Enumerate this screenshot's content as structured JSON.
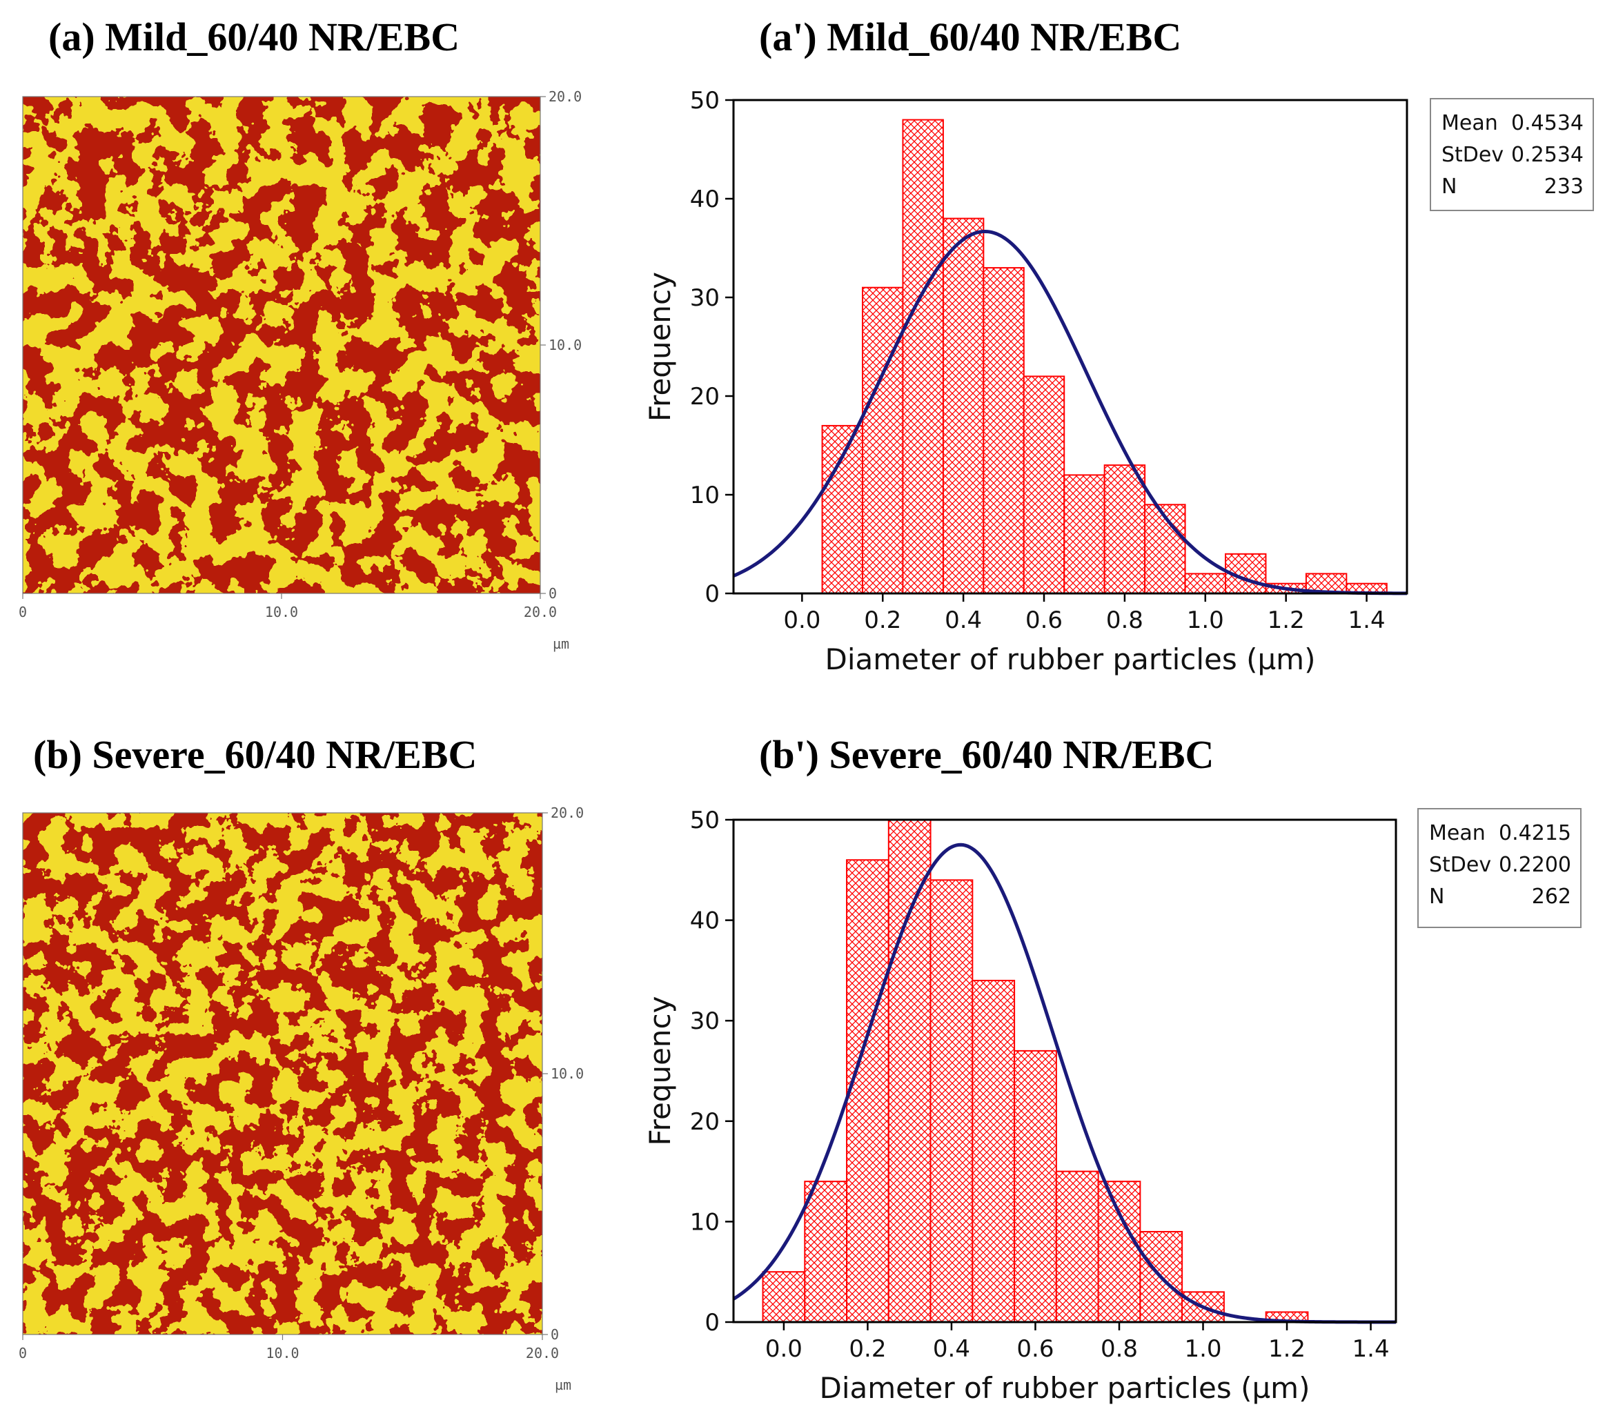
{
  "colors": {
    "matrix": "#f2dc2c",
    "matrix_dark": "#b9a615",
    "rubber": "#b81c0a",
    "bar": "#ff0000",
    "curve": "#1a1a7a"
  },
  "panels": {
    "a": {
      "title": "(a) Mild_60/40 NR/EBC"
    },
    "a_prime": {
      "title": "(a') Mild_60/40 NR/EBC"
    },
    "b": {
      "title": "(b) Severe_60/40 NR/EBC"
    },
    "b_prime": {
      "title": "(b') Severe_60/40 NR/EBC"
    }
  },
  "afm": {
    "x_ticks": [
      "0",
      "10.0",
      "20.0"
    ],
    "y_ticks": [
      "0",
      "10.0",
      "20.0"
    ],
    "unit": "µm"
  },
  "chart_data": [
    {
      "type": "bar",
      "panel": "(a') Mild_60/40 NR/EBC",
      "xlabel": "Diameter of rubber particles (µm)",
      "ylabel": "Frequency",
      "xlim": [
        -0.17,
        1.5
      ],
      "ylim": [
        0,
        50
      ],
      "x_ticks": [
        "0.0",
        "0.2",
        "0.4",
        "0.6",
        "0.8",
        "1.0",
        "1.2",
        "1.4"
      ],
      "y_ticks": [
        "0",
        "10",
        "20",
        "30",
        "40",
        "50"
      ],
      "bin_width": 0.1,
      "bin_centers": [
        0.0,
        0.1,
        0.2,
        0.3,
        0.4,
        0.5,
        0.6,
        0.7,
        0.8,
        0.9,
        1.0,
        1.1,
        1.2,
        1.3,
        1.4
      ],
      "values": [
        0,
        17,
        31,
        48,
        38,
        33,
        22,
        12,
        13,
        9,
        2,
        4,
        1,
        2,
        1
      ],
      "fit": {
        "type": "normal",
        "mean": 0.4534,
        "stdev": 0.2534,
        "n": 233
      },
      "stats": [
        [
          "Mean",
          "0.4534"
        ],
        [
          "StDev",
          "0.2534"
        ],
        [
          "N",
          "233"
        ]
      ]
    },
    {
      "type": "bar",
      "panel": "(b') Severe_60/40 NR/EBC",
      "xlabel": "Diameter of rubber particles (µm)",
      "ylabel": "Frequency",
      "xlim": [
        -0.12,
        1.46
      ],
      "ylim": [
        0,
        50
      ],
      "x_ticks": [
        "0.0",
        "0.2",
        "0.4",
        "0.6",
        "0.8",
        "1.0",
        "1.2",
        "1.4"
      ],
      "y_ticks": [
        "0",
        "10",
        "20",
        "30",
        "40",
        "50"
      ],
      "bin_width": 0.1,
      "bin_centers": [
        0.0,
        0.1,
        0.2,
        0.3,
        0.4,
        0.5,
        0.6,
        0.7,
        0.8,
        0.9,
        1.0,
        1.1,
        1.2,
        1.3
      ],
      "values": [
        5,
        14,
        46,
        50,
        44,
        34,
        27,
        15,
        14,
        9,
        3,
        0,
        1,
        0
      ],
      "fit": {
        "type": "normal",
        "mean": 0.4215,
        "stdev": 0.22,
        "n": 262
      },
      "stats": [
        [
          "Mean",
          "0.4215"
        ],
        [
          "StDev",
          "0.2200"
        ],
        [
          "N",
          "262"
        ]
      ]
    }
  ]
}
